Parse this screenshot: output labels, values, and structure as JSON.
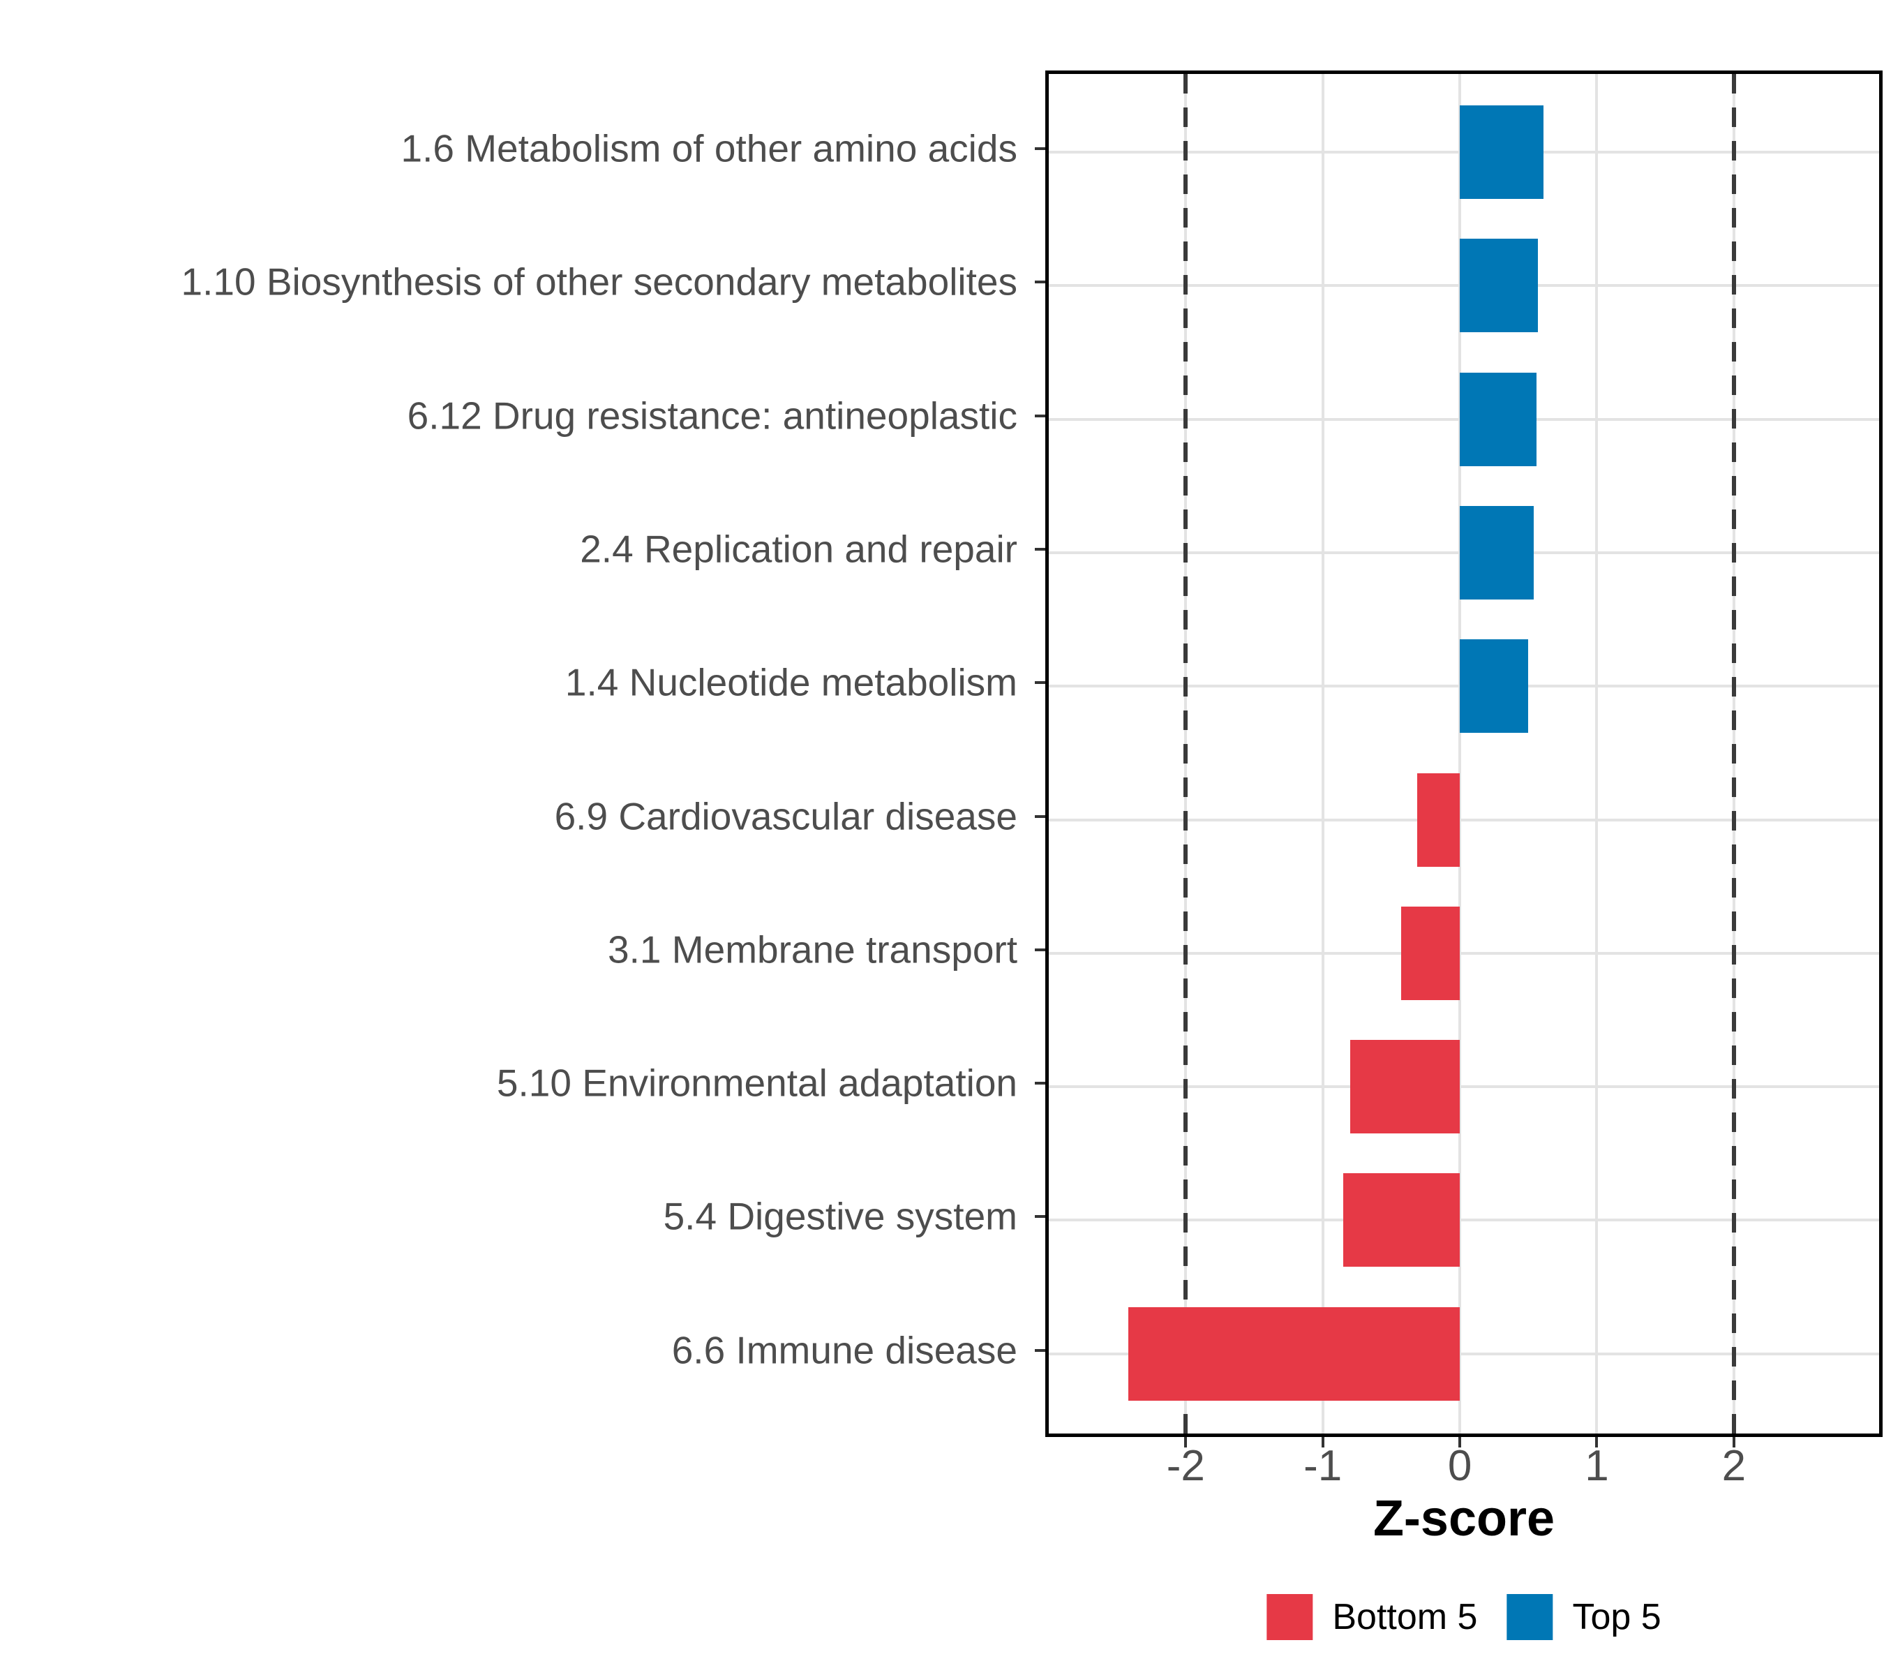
{
  "chart_data": {
    "type": "bar",
    "orientation": "horizontal",
    "xlabel": "Z-score",
    "categories": [
      "1.6 Metabolism of other amino acids",
      "1.10 Biosynthesis of other secondary metabolites",
      "6.12 Drug resistance: antineoplastic",
      "2.4 Replication and repair",
      "1.4 Nucleotide metabolism",
      "6.9 Cardiovascular disease",
      "3.1 Membrane transport",
      "5.10 Environmental adaptation",
      "5.4 Digestive system",
      "6.6 Immune disease"
    ],
    "values": [
      0.61,
      0.57,
      0.56,
      0.54,
      0.5,
      -0.31,
      -0.43,
      -0.8,
      -0.85,
      -2.42
    ],
    "groups": [
      "Top 5",
      "Top 5",
      "Top 5",
      "Top 5",
      "Top 5",
      "Bottom 5",
      "Bottom 5",
      "Bottom 5",
      "Bottom 5",
      "Bottom 5"
    ],
    "series_colors": {
      "Bottom 5": "#E63946",
      "Top 5": "#0077B5"
    },
    "x_ticks": [
      -2,
      -1,
      0,
      1,
      2
    ],
    "x_tick_labels": [
      "-2",
      "-1",
      "0",
      "1",
      "2"
    ],
    "xlim": [
      -3.0,
      3.06
    ],
    "reference_lines": [
      -2,
      2
    ],
    "grid": true,
    "legend": [
      {
        "label": "Bottom 5",
        "color": "#E63946"
      },
      {
        "label": "Top 5",
        "color": "#0077B5"
      }
    ],
    "legend_position": "bottom"
  },
  "colors": {
    "bottom5": "#E63946",
    "top5": "#0077B5",
    "grid": "#E3E3E3",
    "reference_line": "#3A3A3A",
    "axis_text": "#4D4D4D",
    "panel_border": "#000000"
  }
}
